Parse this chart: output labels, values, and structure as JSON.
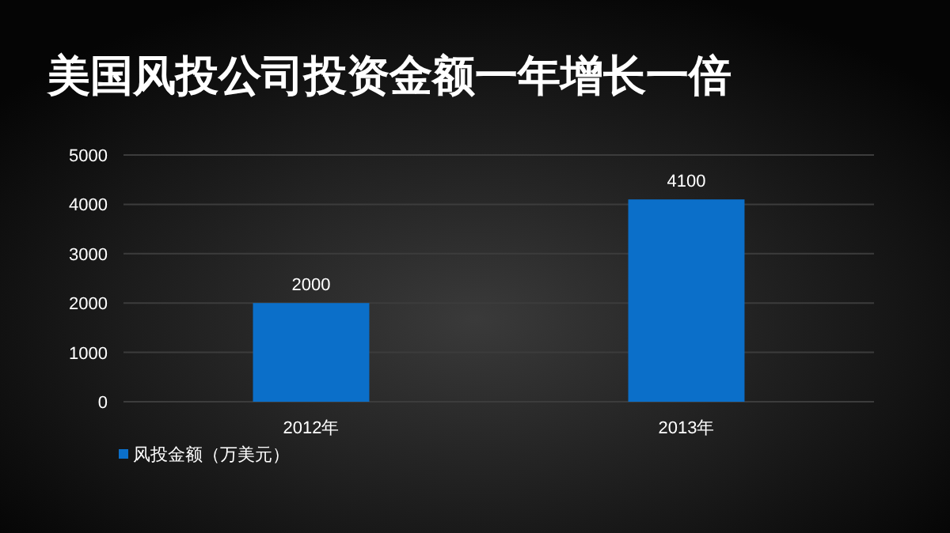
{
  "chart_data": {
    "type": "bar",
    "title": "美国风投公司投资金额一年增长一倍",
    "categories": [
      "2012年",
      "2013年"
    ],
    "series": [
      {
        "name": "风投金额（万美元）",
        "color": "#0b6fc9",
        "values": [
          2000,
          4100
        ]
      }
    ],
    "ylim": [
      0,
      5000
    ],
    "yticks": [
      0,
      1000,
      2000,
      3000,
      4000,
      5000
    ],
    "grid": "y",
    "legend": "bottom left",
    "data_labels": true
  }
}
